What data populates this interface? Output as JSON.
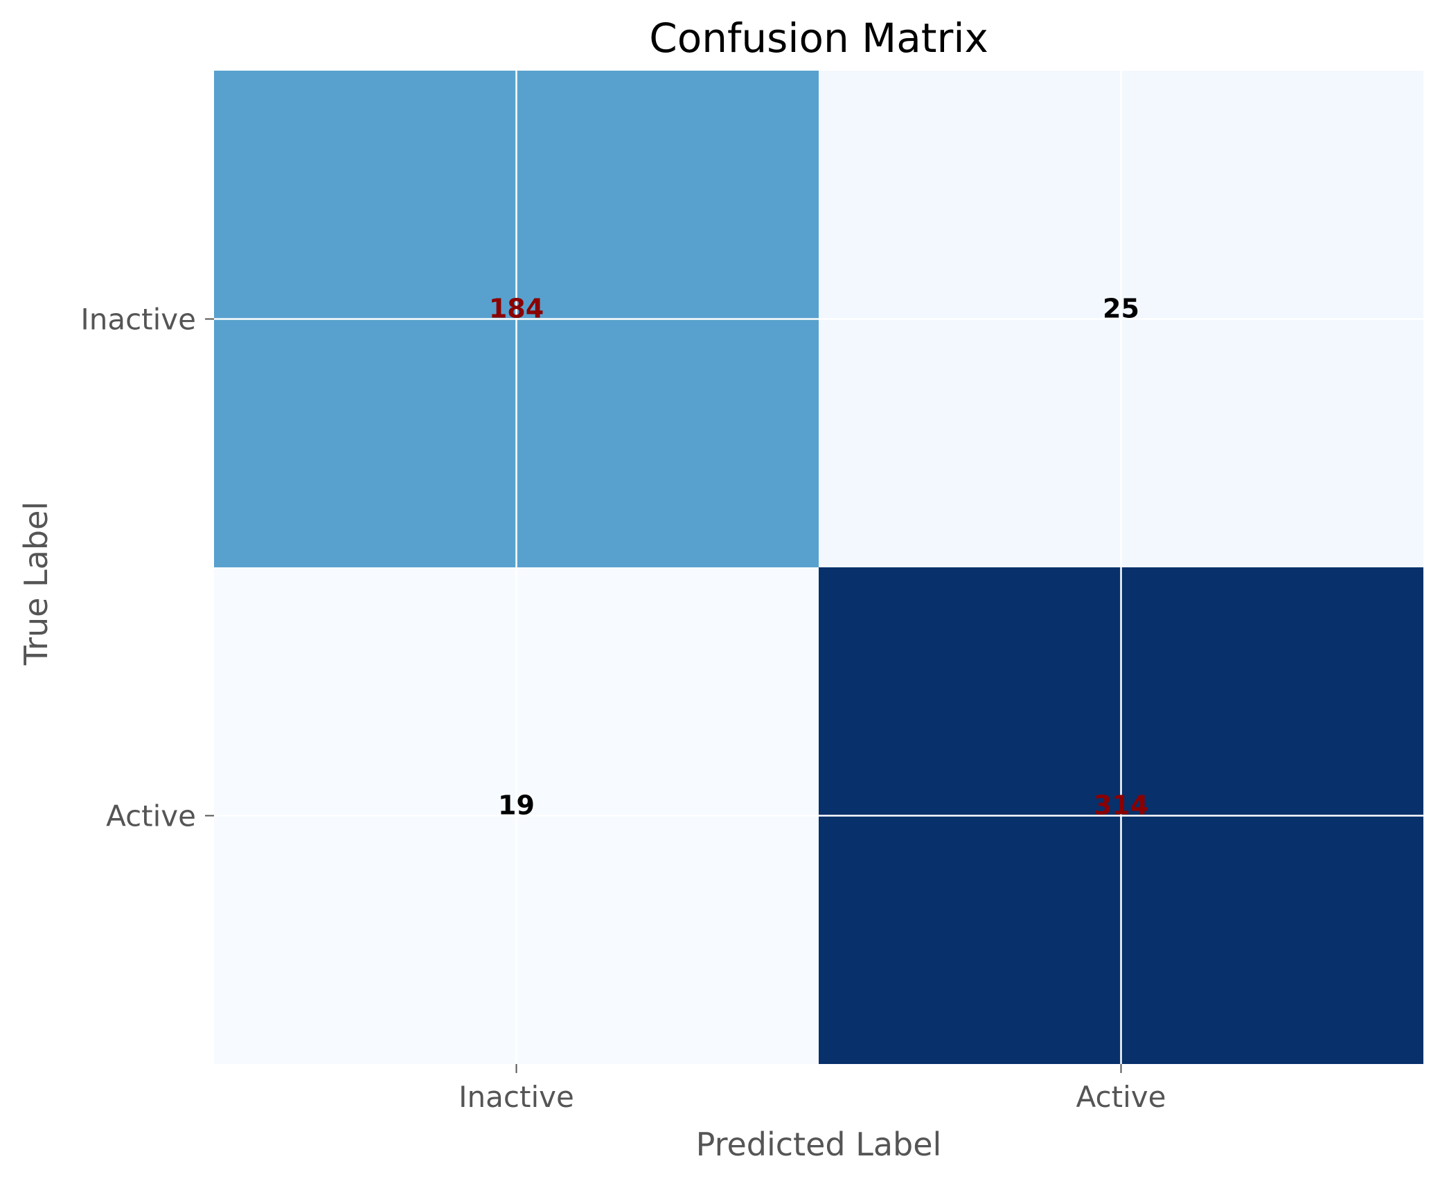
{
  "chart_data": {
    "type": "heatmap",
    "title": "Confusion Matrix",
    "xlabel": "Predicted Label",
    "ylabel": "True Label",
    "x_categories": [
      "Inactive",
      "Active"
    ],
    "y_categories": [
      "Inactive",
      "Active"
    ],
    "values": [
      [
        184,
        25
      ],
      [
        19,
        314
      ]
    ],
    "colormap": "Blues",
    "diagonal_label_color": "#8b0000",
    "off_diagonal_label_color": "#000000",
    "grid": true,
    "grid_color": "#ffffff"
  }
}
